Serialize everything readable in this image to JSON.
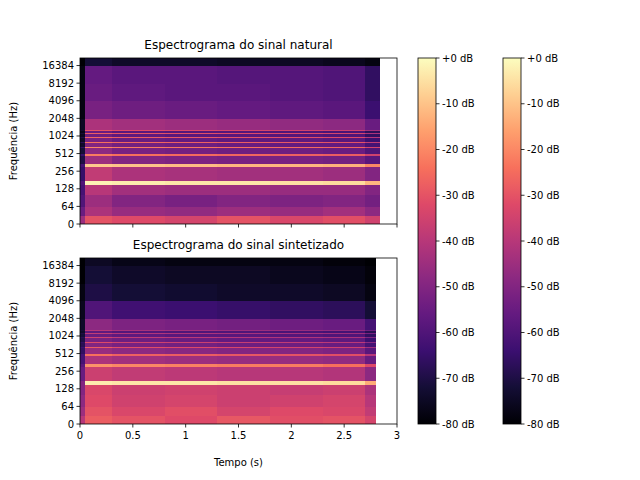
{
  "chart_data": [
    {
      "type": "heatmap",
      "title": "Espectrograma do sinal natural",
      "y_label": "Frequência (Hz)",
      "xlim": [
        0,
        3
      ],
      "xticks": [
        0,
        0.5,
        1,
        1.5,
        2,
        2.5,
        3
      ],
      "ylim": [
        0,
        22050
      ],
      "yticks": [
        0,
        64,
        128,
        256,
        512,
        1024,
        2048,
        4096,
        8192,
        16384
      ],
      "log": "y",
      "tick_labels": "y",
      "times": [
        0,
        0.05,
        0.3,
        0.8,
        1.3,
        1.8,
        2.3,
        2.7,
        2.84
      ],
      "frequencies": [
        0,
        32,
        64,
        100,
        150,
        176,
        312,
        340,
        475,
        503,
        638,
        666,
        800,
        830,
        963,
        993,
        1126,
        1156,
        1290,
        1320,
        2048,
        4096,
        8192,
        16384,
        22050
      ],
      "cells": [
        [
          -45,
          -30,
          -32,
          -34,
          -30,
          -33,
          -31,
          -35
        ],
        [
          -55,
          -42,
          -46,
          -47,
          -45,
          -46,
          -44,
          -48
        ],
        [
          -60,
          -45,
          -50,
          -52,
          -50,
          -51,
          -50,
          -53
        ],
        [
          -62,
          -40,
          -44,
          -45,
          -45,
          -46,
          -46,
          -50
        ],
        [
          -60,
          -2,
          -3,
          -4,
          -4,
          -5,
          -6,
          -12
        ],
        [
          -65,
          -38,
          -42,
          -43,
          -44,
          -44,
          -45,
          -50
        ],
        [
          -62,
          -9,
          -10,
          -11,
          -12,
          -12,
          -13,
          -20
        ],
        [
          -70,
          -45,
          -50,
          -51,
          -52,
          -52,
          -53,
          -58
        ],
        [
          -65,
          -22,
          -24,
          -25,
          -26,
          -27,
          -28,
          -35
        ],
        [
          -72,
          -48,
          -52,
          -53,
          -54,
          -54,
          -55,
          -60
        ],
        [
          -66,
          -20,
          -22,
          -23,
          -24,
          -25,
          -26,
          -34
        ],
        [
          -74,
          -50,
          -53,
          -54,
          -55,
          -56,
          -56,
          -62
        ],
        [
          -68,
          -24,
          -26,
          -27,
          -28,
          -29,
          -30,
          -38
        ],
        [
          -75,
          -52,
          -55,
          -56,
          -57,
          -57,
          -58,
          -64
        ],
        [
          -70,
          -26,
          -28,
          -29,
          -30,
          -31,
          -32,
          -40
        ],
        [
          -76,
          -54,
          -57,
          -58,
          -58,
          -59,
          -60,
          -66
        ],
        [
          -72,
          -28,
          -30,
          -31,
          -32,
          -33,
          -34,
          -42
        ],
        [
          -77,
          -55,
          -58,
          -59,
          -59,
          -60,
          -61,
          -67
        ],
        [
          -73,
          -30,
          -32,
          -33,
          -34,
          -35,
          -36,
          -44
        ],
        [
          -75,
          -42,
          -44,
          -45,
          -46,
          -47,
          -48,
          -55
        ],
        [
          -78,
          -52,
          -54,
          -55,
          -56,
          -57,
          -58,
          -64
        ],
        [
          -78,
          -55,
          -57,
          -58,
          -58,
          -59,
          -60,
          -66
        ],
        [
          -78,
          -56,
          -58,
          -58,
          -59,
          -59,
          -60,
          -66
        ],
        [
          -80,
          -72,
          -74,
          -74,
          -75,
          -75,
          -76,
          -78
        ]
      ],
      "colorbar": {
        "range": [
          -80,
          0
        ],
        "ticks": [
          {
            "value": 0,
            "label": "+0 dB"
          },
          {
            "value": -10,
            "label": "-10 dB"
          },
          {
            "value": -20,
            "label": "-20 dB"
          },
          {
            "value": -30,
            "label": "-30 dB"
          },
          {
            "value": -40,
            "label": "-40 dB"
          },
          {
            "value": -50,
            "label": "-50 dB"
          },
          {
            "value": -60,
            "label": "-60 dB"
          },
          {
            "value": -70,
            "label": "-70 dB"
          },
          {
            "value": -80,
            "label": "-80 dB"
          }
        ]
      }
    },
    {
      "type": "heatmap",
      "title": "Espectrograma do sinal sintetizado",
      "x_label": "Tempo (s)",
      "y_label": "Frequência (Hz)",
      "xlim": [
        0,
        3
      ],
      "xticks": [
        0,
        0.5,
        1,
        1.5,
        2,
        2.5,
        3
      ],
      "ylim": [
        0,
        22050
      ],
      "yticks": [
        0,
        64,
        128,
        256,
        512,
        1024,
        2048,
        4096,
        8192,
        16384
      ],
      "log": "y",
      "times": [
        0,
        0.05,
        0.3,
        0.8,
        1.3,
        1.8,
        2.3,
        2.7,
        2.8
      ],
      "frequencies": [
        0,
        32,
        64,
        100,
        150,
        176,
        312,
        340,
        475,
        503,
        638,
        666,
        800,
        830,
        963,
        993,
        1126,
        1156,
        1290,
        1320,
        2048,
        4096,
        8192,
        16384,
        22050
      ],
      "cells": [
        [
          -40,
          -28,
          -30,
          -32,
          -29,
          -31,
          -30,
          -34
        ],
        [
          -45,
          -30,
          -33,
          -31,
          -34,
          -32,
          -33,
          -38
        ],
        [
          -48,
          -32,
          -35,
          -34,
          -36,
          -35,
          -34,
          -40
        ],
        [
          -50,
          -33,
          -36,
          -35,
          -36,
          -37,
          -36,
          -42
        ],
        [
          -50,
          -3,
          -4,
          -4,
          -5,
          -5,
          -6,
          -14
        ],
        [
          -55,
          -36,
          -38,
          -39,
          -40,
          -40,
          -41,
          -48
        ],
        [
          -58,
          -18,
          -20,
          -21,
          -22,
          -22,
          -24,
          -32
        ],
        [
          -62,
          -42,
          -44,
          -45,
          -46,
          -46,
          -47,
          -55
        ],
        [
          -62,
          -24,
          -27,
          -28,
          -29,
          -30,
          -31,
          -40
        ],
        [
          -66,
          -46,
          -48,
          -49,
          -50,
          -50,
          -51,
          -58
        ],
        [
          -64,
          -28,
          -31,
          -32,
          -33,
          -34,
          -35,
          -44
        ],
        [
          -68,
          -50,
          -52,
          -53,
          -54,
          -54,
          -55,
          -62
        ],
        [
          -66,
          -32,
          -35,
          -36,
          -37,
          -38,
          -39,
          -48
        ],
        [
          -70,
          -52,
          -54,
          -55,
          -56,
          -56,
          -57,
          -64
        ],
        [
          -68,
          -35,
          -38,
          -39,
          -40,
          -41,
          -42,
          -50
        ],
        [
          -72,
          -55,
          -57,
          -58,
          -58,
          -59,
          -60,
          -66
        ],
        [
          -70,
          -38,
          -41,
          -42,
          -43,
          -44,
          -45,
          -52
        ],
        [
          -74,
          -57,
          -59,
          -60,
          -60,
          -61,
          -62,
          -68
        ],
        [
          -72,
          -40,
          -43,
          -44,
          -45,
          -46,
          -47,
          -54
        ],
        [
          -74,
          -48,
          -51,
          -52,
          -53,
          -54,
          -55,
          -62
        ],
        [
          -76,
          -60,
          -63,
          -64,
          -65,
          -66,
          -67,
          -72
        ],
        [
          -78,
          -70,
          -72,
          -73,
          -74,
          -74,
          -75,
          -78
        ],
        [
          -80,
          -72,
          -74,
          -75,
          -75,
          -76,
          -77,
          -79
        ],
        [
          -80,
          -75,
          -77,
          -78,
          -78,
          -78,
          -79,
          -80
        ]
      ],
      "colorbar": {
        "range": [
          -80,
          0
        ],
        "ticks": [
          {
            "value": 0,
            "label": "+0 dB"
          },
          {
            "value": -10,
            "label": "-10 dB"
          },
          {
            "value": -20,
            "label": "-20 dB"
          },
          {
            "value": -30,
            "label": "-30 dB"
          },
          {
            "value": -40,
            "label": "-40 dB"
          },
          {
            "value": -50,
            "label": "-50 dB"
          },
          {
            "value": -60,
            "label": "-60 dB"
          },
          {
            "value": -70,
            "label": "-70 dB"
          },
          {
            "value": -80,
            "label": "-80 dB"
          }
        ]
      }
    }
  ]
}
